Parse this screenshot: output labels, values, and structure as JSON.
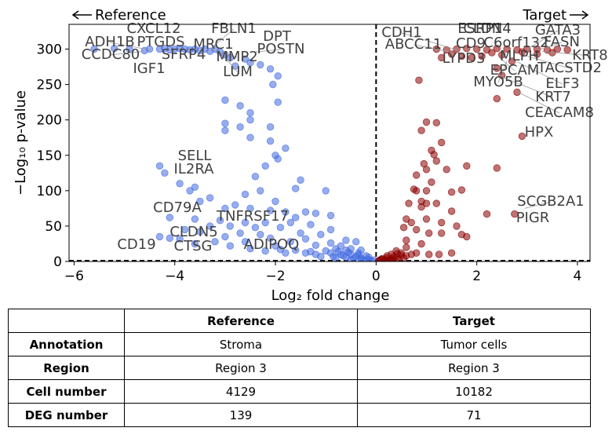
{
  "chart_data": {
    "type": "scatter",
    "xlabel": "Log₂ fold change",
    "ylabel": "−Log₁₀ p-value",
    "xlim": [
      -6.1,
      4.25
    ],
    "ylim": [
      0,
      335
    ],
    "xticks": [
      -6,
      -4,
      -2,
      0,
      2,
      4
    ],
    "yticks": [
      0,
      50,
      100,
      150,
      200,
      250,
      300
    ],
    "grid": false,
    "direction_labels": {
      "left": "Reference",
      "right": "Target"
    },
    "colors": {
      "reference": "#4169e1",
      "target": "#8b0000",
      "label": "#404040"
    },
    "series": [
      {
        "group": "reference",
        "points": [
          [
            -5.6,
            300
          ],
          [
            -5.2,
            301
          ],
          [
            -4.9,
            300
          ],
          [
            -4.6,
            298
          ],
          [
            -4.5,
            300
          ],
          [
            -4.3,
            300
          ],
          [
            -4.2,
            301
          ],
          [
            -4.1,
            299
          ],
          [
            -4.0,
            300
          ],
          [
            -3.9,
            301
          ],
          [
            -3.8,
            300
          ],
          [
            -3.7,
            299
          ],
          [
            -3.6,
            300
          ],
          [
            -3.5,
            298
          ],
          [
            -3.4,
            300
          ],
          [
            -3.3,
            297
          ],
          [
            -3.2,
            300
          ],
          [
            -3.1,
            296
          ],
          [
            -3.0,
            292
          ],
          [
            -2.9,
            288
          ],
          [
            -2.8,
            276
          ],
          [
            -2.6,
            286
          ],
          [
            -2.5,
            281
          ],
          [
            -2.3,
            278
          ],
          [
            -2.1,
            272
          ],
          [
            -1.95,
            262
          ],
          [
            -2.05,
            250
          ],
          [
            -3.0,
            228
          ],
          [
            -2.7,
            220
          ],
          [
            -1.95,
            225
          ],
          [
            -2.5,
            210
          ],
          [
            -2.5,
            200
          ],
          [
            -3.0,
            195
          ],
          [
            -3.0,
            185
          ],
          [
            -2.7,
            190
          ],
          [
            -2.1,
            190
          ],
          [
            -2.5,
            175
          ],
          [
            -2.1,
            170
          ],
          [
            -1.8,
            160
          ],
          [
            -2.0,
            150
          ],
          [
            -1.95,
            145
          ],
          [
            -2.2,
            135
          ],
          [
            -4.3,
            135
          ],
          [
            -4.2,
            125
          ],
          [
            -2.4,
            120
          ],
          [
            -1.5,
            115
          ],
          [
            -3.9,
            110
          ],
          [
            -3.6,
            105
          ],
          [
            -1.6,
            103
          ],
          [
            -3.7,
            100
          ],
          [
            -1.0,
            100
          ],
          [
            -2.6,
            95
          ],
          [
            -2.3,
            100
          ],
          [
            -3.3,
            90
          ],
          [
            -3.5,
            85
          ],
          [
            -2.0,
            85
          ],
          [
            -2.8,
            80
          ],
          [
            -3.0,
            75
          ],
          [
            -2.5,
            75
          ],
          [
            -2.1,
            72
          ],
          [
            -1.8,
            70
          ],
          [
            -1.4,
            70
          ],
          [
            -1.2,
            68
          ],
          [
            -0.9,
            65
          ],
          [
            -4.1,
            62
          ],
          [
            -1.6,
            62
          ],
          [
            -3.6,
            60
          ],
          [
            -3.1,
            58
          ],
          [
            -2.6,
            55
          ],
          [
            -2.2,
            55
          ],
          [
            -1.7,
            55
          ],
          [
            -1.3,
            52
          ],
          [
            -3.3,
            50
          ],
          [
            -2.9,
            50
          ],
          [
            -2.4,
            48
          ],
          [
            -1.9,
            48
          ],
          [
            -0.9,
            45
          ],
          [
            -3.8,
            45
          ],
          [
            -3.5,
            42
          ],
          [
            -2.7,
            40
          ],
          [
            -2.3,
            38
          ],
          [
            -1.5,
            40
          ],
          [
            -1.1,
            38
          ],
          [
            -4.3,
            35
          ],
          [
            -4.1,
            33
          ],
          [
            -3.9,
            32
          ],
          [
            -3.0,
            35
          ],
          [
            -2.1,
            33
          ],
          [
            -1.4,
            32
          ],
          [
            -0.6,
            30
          ],
          [
            -3.2,
            28
          ],
          [
            -2.6,
            28
          ],
          [
            -1.7,
            28
          ],
          [
            -0.9,
            26
          ],
          [
            -0.4,
            28
          ],
          [
            -3.6,
            25
          ],
          [
            -2.9,
            22
          ],
          [
            -2.0,
            22
          ],
          [
            -1.2,
            23
          ],
          [
            -0.7,
            22
          ],
          [
            -2.5,
            18
          ],
          [
            -1.6,
            16
          ],
          [
            -1.0,
            15
          ],
          [
            -0.8,
            18
          ],
          [
            -0.6,
            16
          ],
          [
            -0.5,
            18
          ],
          [
            -0.3,
            16
          ],
          [
            -2.2,
            15
          ],
          [
            -1.8,
            12
          ],
          [
            -1.4,
            12
          ],
          [
            -1.2,
            10
          ],
          [
            -0.9,
            12
          ],
          [
            -0.7,
            10
          ],
          [
            -0.5,
            10
          ],
          [
            -0.35,
            12
          ],
          [
            -0.2,
            8
          ],
          [
            -1.1,
            7
          ],
          [
            -0.8,
            5
          ],
          [
            -0.6,
            6
          ],
          [
            -0.45,
            4
          ],
          [
            -0.3,
            5
          ],
          [
            -0.25,
            2
          ],
          [
            -0.15,
            3
          ],
          [
            -0.1,
            1
          ],
          [
            -0.05,
            2
          ],
          [
            -0.4,
            7
          ],
          [
            -0.55,
            13
          ],
          [
            -0.75,
            14
          ],
          [
            -1.3,
            14
          ],
          [
            -1.9,
            17
          ],
          [
            -0.65,
            8
          ],
          [
            -0.15,
            6
          ],
          [
            -0.3,
            3
          ],
          [
            -0.5,
            2
          ],
          [
            -0.35,
            9
          ],
          [
            -0.85,
            7
          ]
        ]
      },
      {
        "group": "target",
        "points": [
          [
            1.2,
            300
          ],
          [
            1.4,
            299
          ],
          [
            1.6,
            300
          ],
          [
            1.8,
            301
          ],
          [
            2.0,
            300
          ],
          [
            2.2,
            299
          ],
          [
            2.4,
            301
          ],
          [
            2.6,
            300
          ],
          [
            2.8,
            299
          ],
          [
            3.0,
            300
          ],
          [
            3.2,
            300
          ],
          [
            3.4,
            299
          ],
          [
            3.6,
            300
          ],
          [
            3.8,
            299
          ],
          [
            1.5,
            293
          ],
          [
            1.7,
            290
          ],
          [
            2.1,
            290
          ],
          [
            2.5,
            292
          ],
          [
            2.9,
            296
          ],
          [
            3.2,
            293
          ],
          [
            1.9,
            288
          ],
          [
            2.7,
            283
          ],
          [
            1.3,
            288
          ],
          [
            2.3,
            295
          ],
          [
            3.5,
            295
          ],
          [
            2.4,
            273
          ],
          [
            2.5,
            263
          ],
          [
            0.85,
            256
          ],
          [
            2.8,
            239
          ],
          [
            2.4,
            230
          ],
          [
            1.0,
            197
          ],
          [
            1.2,
            196
          ],
          [
            0.9,
            185
          ],
          [
            2.9,
            177
          ],
          [
            1.3,
            168
          ],
          [
            1.1,
            157
          ],
          [
            1.15,
            151
          ],
          [
            1.2,
            142
          ],
          [
            0.95,
            138
          ],
          [
            1.0,
            130
          ],
          [
            1.4,
            130
          ],
          [
            1.8,
            135
          ],
          [
            2.4,
            132
          ],
          [
            0.8,
            122
          ],
          [
            1.1,
            112
          ],
          [
            0.75,
            102
          ],
          [
            0.8,
            100
          ],
          [
            1.0,
            100
          ],
          [
            1.5,
            98
          ],
          [
            1.7,
            101
          ],
          [
            0.9,
            85
          ],
          [
            1.0,
            82
          ],
          [
            1.2,
            82
          ],
          [
            0.65,
            82
          ],
          [
            0.9,
            77
          ],
          [
            1.5,
            71
          ],
          [
            2.2,
            67
          ],
          [
            2.75,
            67
          ],
          [
            1.0,
            60
          ],
          [
            0.6,
            60
          ],
          [
            0.7,
            55
          ],
          [
            1.3,
            55
          ],
          [
            1.6,
            50
          ],
          [
            0.55,
            48
          ],
          [
            0.8,
            45
          ],
          [
            1.05,
            40
          ],
          [
            1.3,
            40
          ],
          [
            1.7,
            38
          ],
          [
            1.8,
            35
          ],
          [
            0.6,
            30
          ],
          [
            0.9,
            25
          ],
          [
            0.6,
            20
          ],
          [
            0.4,
            15
          ],
          [
            0.8,
            12
          ],
          [
            1.05,
            10
          ],
          [
            1.25,
            10
          ],
          [
            1.5,
            12
          ],
          [
            0.3,
            10
          ],
          [
            0.5,
            12
          ],
          [
            0.6,
            8
          ],
          [
            0.2,
            5
          ],
          [
            0.3,
            4
          ],
          [
            0.4,
            6
          ],
          [
            0.1,
            3
          ],
          [
            0.15,
            2
          ],
          [
            0.25,
            1
          ],
          [
            0.35,
            2
          ],
          [
            0.45,
            3
          ],
          [
            0.55,
            5
          ],
          [
            0.05,
            1
          ],
          [
            0.08,
            2
          ],
          [
            0.12,
            4
          ],
          [
            0.2,
            2
          ],
          [
            0.5,
            9
          ],
          [
            0.7,
            10
          ],
          [
            0.35,
            7
          ],
          [
            0.22,
            8
          ],
          [
            0.42,
            11
          ],
          [
            0.28,
            2
          ]
        ]
      }
    ],
    "annotations": [
      {
        "text": "FBLN1",
        "x": -3.3,
        "y": 300
      },
      {
        "text": "CXCL12",
        "x": -4.15,
        "y": 300
      },
      {
        "text": "DPT",
        "x": -2.1,
        "y": 298
      },
      {
        "text": "ADH1B",
        "x": -4.5,
        "y": 299
      },
      {
        "text": "PTGDS",
        "x": -4.05,
        "y": 300
      },
      {
        "text": "MRC1",
        "x": -3.2,
        "y": 298
      },
      {
        "text": "POSTN",
        "x": -2.4,
        "y": 296
      },
      {
        "text": "CCDC80",
        "x": -4.6,
        "y": 297
      },
      {
        "text": "SFRP4",
        "x": -4.0,
        "y": 300
      },
      {
        "text": "MMP2",
        "x": -3.3,
        "y": 300
      },
      {
        "text": "IGF1",
        "x": -4.4,
        "y": 296
      },
      {
        "text": "LUM",
        "x": -3.1,
        "y": 296
      },
      {
        "text": "SELL",
        "x": -4.0,
        "y": 135
      },
      {
        "text": "IL2RA",
        "x": -4.0,
        "y": 125
      },
      {
        "text": "CD79A",
        "x": -4.1,
        "y": 62
      },
      {
        "text": "TNFRSF17",
        "x": -2.6,
        "y": 55
      },
      {
        "text": "CLDN5",
        "x": -3.6,
        "y": 38
      },
      {
        "text": "CD19",
        "x": -4.5,
        "y": 28
      },
      {
        "text": "CTSG",
        "x": -3.6,
        "y": 28
      },
      {
        "text": "ADIPOQ",
        "x": -2.3,
        "y": 28
      },
      {
        "text": "CDH1",
        "x": 1.6,
        "y": 299
      },
      {
        "text": "CLDN4",
        "x": 2.1,
        "y": 301
      },
      {
        "text": "ESRP1",
        "x": 2.0,
        "y": 300
      },
      {
        "text": "GATA3",
        "x": 3.0,
        "y": 300
      },
      {
        "text": "ABCC11",
        "x": 1.5,
        "y": 296
      },
      {
        "text": "CD9",
        "x": 1.8,
        "y": 300
      },
      {
        "text": "C6orf132",
        "x": 2.5,
        "y": 300
      },
      {
        "text": "FASN",
        "x": 3.2,
        "y": 298
      },
      {
        "text": "LYPD3",
        "x": 1.85,
        "y": 290
      },
      {
        "text": "MLPH",
        "x": 2.6,
        "y": 292
      },
      {
        "text": "KRT8",
        "x": 3.3,
        "y": 297
      },
      {
        "text": "EPCAM",
        "x": 2.45,
        "y": 288
      },
      {
        "text": "TACSTD2",
        "x": 3.0,
        "y": 290
      },
      {
        "text": "MYO5B",
        "x": 2.6,
        "y": 283
      },
      {
        "text": "ELF3",
        "x": 2.8,
        "y": 282
      },
      {
        "text": "KRT7",
        "x": 2.45,
        "y": 262
      },
      {
        "text": "CEACAM8",
        "x": 2.8,
        "y": 240
      },
      {
        "text": "HPX",
        "x": 2.95,
        "y": 177
      },
      {
        "text": "SCGB2A1",
        "x": 2.95,
        "y": 75
      },
      {
        "text": "PIGR",
        "x": 3.25,
        "y": 72
      }
    ]
  },
  "table": {
    "headers": [
      "",
      "Reference",
      "Target"
    ],
    "rows": [
      {
        "label": "Annotation",
        "reference": "Stroma",
        "target": "Tumor cells"
      },
      {
        "label": "Region",
        "reference": "Region 3",
        "target": "Region 3"
      },
      {
        "label": "Cell number",
        "reference": "4129",
        "target": "10182"
      },
      {
        "label": "DEG number",
        "reference": "139",
        "target": "71"
      }
    ]
  }
}
